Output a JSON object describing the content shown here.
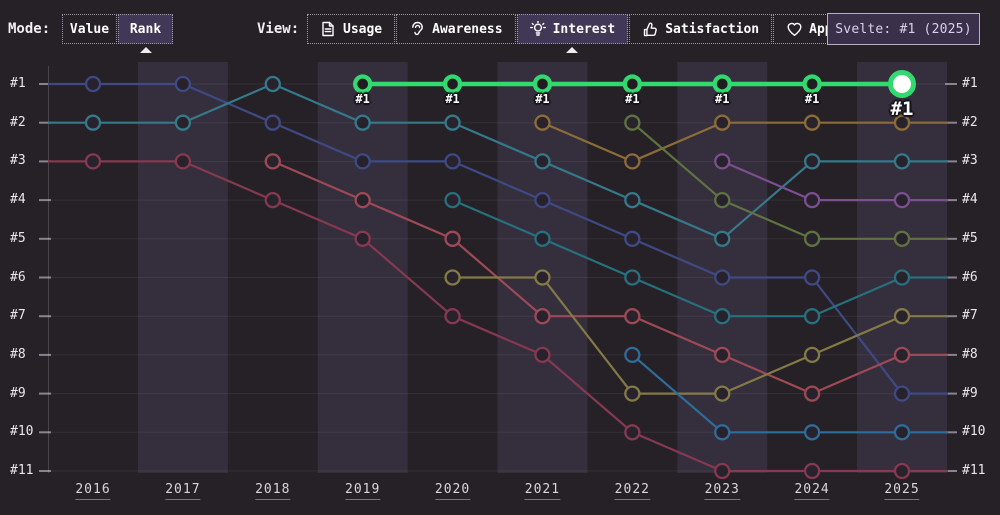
{
  "toolbar": {
    "mode_label": "Mode:",
    "modes": [
      {
        "label": "Value",
        "selected": false
      },
      {
        "label": "Rank",
        "selected": true
      }
    ],
    "view_label": "View:",
    "views": [
      {
        "label": "Usage",
        "icon": "document-icon",
        "selected": false
      },
      {
        "label": "Awareness",
        "icon": "ear-icon",
        "selected": false
      },
      {
        "label": "Interest",
        "icon": "lightbulb-icon",
        "selected": true
      },
      {
        "label": "Satisfaction",
        "icon": "thumbs-up-icon",
        "selected": false
      },
      {
        "label": "Appreciation",
        "icon": "heart-icon",
        "selected": false
      }
    ]
  },
  "tooltip": {
    "text": "Svelte: #1 (2025)"
  },
  "colors": {
    "background": "#262127",
    "column_band": "#342e3d",
    "grid_line": "rgba(255,255,255,0.07)",
    "axis_line": "rgba(255,255,255,0.16)",
    "tick": "#8b8490",
    "selected_button_bg": "#413756",
    "tooltip_bg": "#3b3049",
    "highlight_green": "#32d96e"
  },
  "chart_data": {
    "type": "line",
    "subtype": "bump-chart-rankings",
    "title": "",
    "x_labels": [
      "2016",
      "2017",
      "2018",
      "2019",
      "2020",
      "2021",
      "2022",
      "2023",
      "2024",
      "2025"
    ],
    "y_tick_labels": [
      "#1",
      "#2",
      "#3",
      "#4",
      "#5",
      "#6",
      "#7",
      "#8",
      "#9",
      "#10",
      "#11"
    ],
    "y_axis": "rank (1 = top, shown on both sides)",
    "grid": "horizontal",
    "legend_position": "none",
    "banded_columns": [
      "2017",
      "2019",
      "2021",
      "2023",
      "2025"
    ],
    "highlighted_series": "Svelte",
    "series": [
      {
        "name": "series-blue",
        "color": "#3f4a85",
        "ranks": [
          1,
          1,
          2,
          3,
          3,
          4,
          5,
          6,
          6,
          9
        ]
      },
      {
        "name": "series-teal",
        "color": "#35798a",
        "ranks": [
          2,
          2,
          1,
          2,
          2,
          3,
          4,
          5,
          3,
          3
        ]
      },
      {
        "name": "series-crimson",
        "color": "#863950",
        "ranks": [
          3,
          3,
          4,
          5,
          7,
          8,
          10,
          11,
          11,
          11
        ]
      },
      {
        "name": "series-red",
        "color": "#9d4a56",
        "ranks": [
          null,
          null,
          3,
          4,
          5,
          7,
          7,
          8,
          9,
          8
        ]
      },
      {
        "name": "series-cyan",
        "color": "#27707e",
        "ranks": [
          null,
          null,
          null,
          null,
          4,
          5,
          6,
          7,
          7,
          6
        ]
      },
      {
        "name": "series-olive",
        "color": "#837a46",
        "ranks": [
          null,
          null,
          null,
          null,
          6,
          6,
          9,
          9,
          8,
          7
        ]
      },
      {
        "name": "series-orange",
        "color": "#8c6c38",
        "ranks": [
          null,
          null,
          null,
          null,
          null,
          2,
          3,
          2,
          2,
          2
        ]
      },
      {
        "name": "series-darkgreen",
        "color": "#5f7342",
        "ranks": [
          null,
          null,
          null,
          null,
          null,
          null,
          2,
          4,
          5,
          5
        ]
      },
      {
        "name": "series-steelblue",
        "color": "#2f6c9a",
        "ranks": [
          null,
          null,
          null,
          null,
          null,
          null,
          8,
          10,
          10,
          10
        ]
      },
      {
        "name": "series-purple",
        "color": "#7b4f90",
        "ranks": [
          null,
          null,
          null,
          null,
          null,
          null,
          null,
          3,
          4,
          4
        ]
      },
      {
        "name": "Svelte",
        "color": "#32d96e",
        "highlighted": true,
        "ranks": [
          null,
          null,
          null,
          1,
          1,
          1,
          1,
          1,
          1,
          1
        ],
        "point_labels": [
          null,
          null,
          null,
          "#1",
          "#1",
          "#1",
          "#1",
          "#1",
          "#1",
          "#1"
        ],
        "end_point_style": "large-marker-white-center"
      }
    ]
  }
}
